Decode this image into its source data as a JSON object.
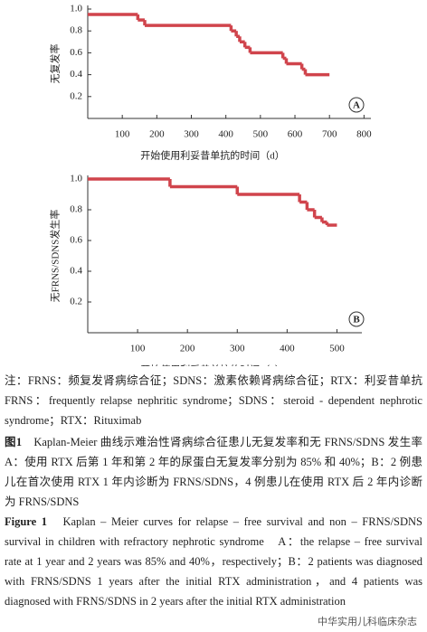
{
  "chart_data": [
    {
      "type": "line",
      "step": true,
      "panel_label": "A",
      "ylabel": "无复发率",
      "xlabel": "开始使用利妥昔单抗的时间（d）",
      "x": [
        0,
        145,
        165,
        415,
        430,
        440,
        455,
        470,
        565,
        575,
        620,
        630,
        700
      ],
      "values": [
        0.95,
        0.9,
        0.85,
        0.8,
        0.75,
        0.7,
        0.65,
        0.6,
        0.55,
        0.5,
        0.45,
        0.4,
        0.4
      ],
      "color": "#d0444c",
      "xlim": [
        0,
        820
      ],
      "ylim": [
        0,
        1
      ],
      "xticks": [
        100,
        200,
        300,
        400,
        500,
        600,
        700,
        800
      ],
      "yticks": [
        0.2,
        0.4,
        0.6,
        0.8,
        {
          "value": 1,
          "label": "1.0"
        }
      ]
    },
    {
      "type": "line",
      "step": true,
      "panel_label": "B",
      "ylabel": "无FRNS/SDNS发生率",
      "xlabel": "开始使用利妥昔单抗的时间（d）",
      "x": [
        0,
        165,
        300,
        425,
        440,
        455,
        470,
        480,
        500
      ],
      "values": [
        1,
        0.95,
        0.9,
        0.85,
        0.8,
        0.75,
        0.72,
        0.7,
        0.7
      ],
      "color": "#d0444c",
      "xlim": [
        0,
        550
      ],
      "ylim": [
        0,
        1
      ],
      "xticks": [
        100,
        200,
        300,
        400,
        500
      ],
      "yticks": [
        0.2,
        0.4,
        0.6,
        0.8,
        {
          "value": 1,
          "label": "1.0"
        }
      ]
    }
  ],
  "notes": "注：FRNS：频复发肾病综合征；SDNS：激素依赖肾病综合征；RTX：利妥昔单抗　FRNS：frequently relapse nephritic syndrome；SDNS：steroid - dependent nephrotic syndrome；RTX：Rituximab",
  "figure_label_zh": "图1",
  "caption_zh": "Kaplan-Meier 曲线示难治性肾病综合征患儿无复发率和无 FRNS/SDNS 发生率　A：使用 RTX 后第 1 年和第 2 年的尿蛋白无复发率分别为 85% 和 40%；B：2 例患儿在首次使用 RTX 1 年内诊断为 FRNS/SDNS，4 例患儿在使用 RTX 后 2 年内诊断为 FRNS/SDNS",
  "figure_label_en": "Figure 1",
  "caption_en": "Kaplan – Meier curves for relapse – free survival and non – FRNS/SDNS survival in children with refractory nephrotic syndrome　A：the relapse – free survival rate at 1 year and 2 years was 85% and 40%，respectively；B：2 patients was diagnosed with FRNS/SDNS 1 years after the initial RTX administration，and 4 patients was diagnosed with FRNS/SDNS in 2 years after the initial RTX administration",
  "watermark": "中华实用儿科临床杂志"
}
